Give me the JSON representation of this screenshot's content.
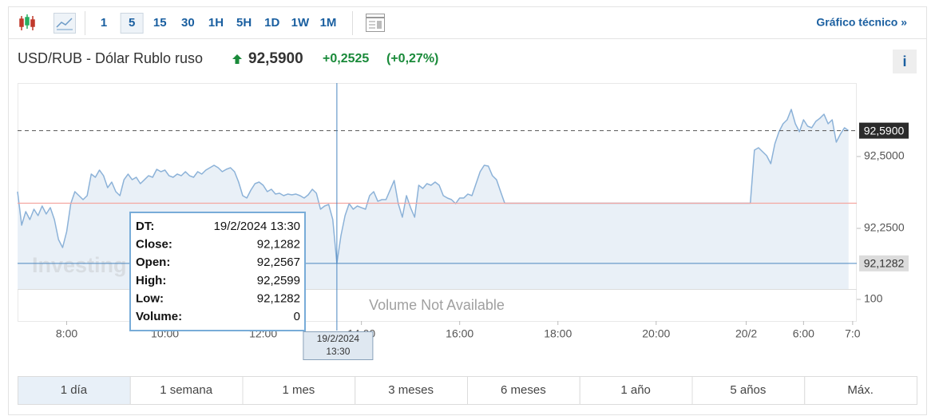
{
  "toolbar": {
    "intervals": [
      "1",
      "5",
      "15",
      "30",
      "1H",
      "5H",
      "1D",
      "1W",
      "1M"
    ],
    "selected": 1,
    "link": "Gráfico técnico »"
  },
  "quote": {
    "name": "USD/RUB - Dólar Rublo ruso",
    "price": "92,5900",
    "change": "+0,2525",
    "change_percent": "(+0,27%)"
  },
  "info_button": "i",
  "chart_data": {
    "type": "line",
    "watermark": "Investing",
    "x": [
      0,
      1,
      2,
      3,
      4,
      5,
      6,
      7,
      8,
      9,
      10,
      11,
      12,
      13,
      14,
      15,
      16,
      17,
      18,
      19,
      20,
      21,
      22,
      23,
      24,
      25,
      26,
      27,
      28,
      29,
      30,
      31,
      32,
      33,
      34,
      35,
      36,
      37,
      38,
      39,
      40,
      41,
      42,
      43,
      44,
      45,
      46,
      47,
      48,
      49,
      50,
      51,
      52,
      53,
      54,
      55,
      56,
      57,
      58,
      59,
      60,
      61,
      62,
      63,
      64,
      65,
      66,
      67,
      68,
      69,
      70,
      71,
      72,
      73,
      74,
      75,
      76,
      77,
      78,
      79,
      80,
      81,
      82,
      83,
      84,
      85,
      86,
      87,
      88,
      89,
      90,
      91,
      92,
      93,
      94,
      95,
      96,
      97,
      98,
      99,
      100,
      101,
      102,
      103,
      104,
      105,
      106,
      107,
      108,
      109,
      110,
      111,
      112,
      113,
      114,
      115,
      116,
      117,
      118,
      119,
      179,
      180,
      181,
      182,
      183,
      184,
      185,
      186,
      187,
      188,
      189,
      190,
      191,
      192,
      193,
      194,
      195,
      196,
      197,
      198,
      199,
      200,
      201,
      202,
      203
    ],
    "values": [
      92.3778,
      92.2611,
      92.3083,
      92.2806,
      92.3167,
      92.2944,
      92.3278,
      92.3,
      92.3222,
      92.2806,
      92.2111,
      92.1833,
      92.2389,
      92.3361,
      92.3778,
      92.3639,
      92.35,
      92.3639,
      92.4389,
      92.4278,
      92.4528,
      92.4333,
      92.3917,
      92.4111,
      92.3778,
      92.3639,
      92.4194,
      92.4389,
      92.4194,
      92.4278,
      92.4056,
      92.4194,
      92.4333,
      92.4278,
      92.4556,
      92.4472,
      92.4528,
      92.4333,
      92.4278,
      92.4389,
      92.4333,
      92.4472,
      92.4333,
      92.4278,
      92.4472,
      92.4389,
      92.4528,
      92.4611,
      92.4694,
      92.4611,
      92.4472,
      92.4556,
      92.4611,
      92.4472,
      92.4111,
      92.3639,
      92.3556,
      92.3833,
      92.4056,
      92.4111,
      92.4,
      92.3778,
      92.3861,
      92.3694,
      92.3722,
      92.3639,
      92.3694,
      92.3667,
      92.3694,
      92.3639,
      92.3556,
      92.3667,
      92.3861,
      92.3722,
      92.3167,
      92.3278,
      92.3333,
      92.2806,
      92.1282,
      92.225,
      92.2944,
      92.3361,
      92.3167,
      92.3278,
      92.3222,
      92.3167,
      92.3639,
      92.3778,
      92.3444,
      92.35,
      92.35,
      92.3833,
      92.4167,
      92.3361,
      92.2889,
      92.3639,
      92.3222,
      92.2889,
      92.4,
      92.3889,
      92.4056,
      92.4,
      92.4111,
      92.4,
      92.3639,
      92.3556,
      92.35,
      92.3361,
      92.3556,
      92.3556,
      92.3694,
      92.3639,
      92.4056,
      92.4472,
      92.4694,
      92.4667,
      92.4333,
      92.4194,
      92.3778,
      92.3375,
      92.3375,
      92.5222,
      92.5306,
      92.5167,
      92.5028,
      92.475,
      92.5444,
      92.5861,
      92.6139,
      92.6278,
      92.6639,
      92.6139,
      92.5861,
      92.6278,
      92.6056,
      92.6,
      92.6222,
      92.6333,
      92.6472,
      92.6139,
      92.6278,
      92.55,
      92.5778,
      92.6,
      92.59
    ],
    "color": "#8cb2d8",
    "fill": "#e9f0f7",
    "xlim": [
      0,
      205
    ],
    "ylim": [
      92.0389,
      92.7556
    ],
    "yticks": [
      {
        "value": 92.25,
        "label": "92,2500"
      },
      {
        "value": 92.5,
        "label": "92,5000"
      }
    ],
    "xticks": [
      {
        "value": 12,
        "label": "8:00"
      },
      {
        "value": 36,
        "label": "10:00"
      },
      {
        "value": 60,
        "label": "12:00"
      },
      {
        "value": 84,
        "label": "14:00"
      },
      {
        "value": 108,
        "label": "16:00"
      },
      {
        "value": 132,
        "label": "18:00"
      },
      {
        "value": 156,
        "label": "20:00"
      },
      {
        "value": 178,
        "label": "20/2"
      },
      {
        "value": 192,
        "label": "6:00"
      },
      {
        "value": 204,
        "label": "7:0"
      }
    ],
    "previous_close": 92.3375,
    "previous_close_color": "#f4a6a0",
    "last_price": {
      "value": 92.59,
      "label": "92,5900"
    },
    "crosshair": {
      "x": 78,
      "x_label": [
        "19/2/2024",
        "13:30"
      ],
      "y": {
        "value": 92.1282,
        "label": "92,1282"
      }
    },
    "volume": {
      "note": "Volume Not Available",
      "ylim": [
        0,
        148
      ],
      "yticks": [
        100
      ]
    }
  },
  "tooltip": {
    "rows": [
      [
        "DT:",
        "19/2/2024 13:30"
      ],
      [
        "Close:",
        "92,1282"
      ],
      [
        "Open:",
        "92,2567"
      ],
      [
        "High:",
        "92,2599"
      ],
      [
        "Low:",
        "92,1282"
      ],
      [
        "Volume:",
        "0"
      ]
    ]
  },
  "periods": {
    "items": [
      "1 día",
      "1 semana",
      "1 mes",
      "3 meses",
      "6 meses",
      "1 año",
      "5 años",
      "Máx."
    ],
    "selected": 0
  }
}
